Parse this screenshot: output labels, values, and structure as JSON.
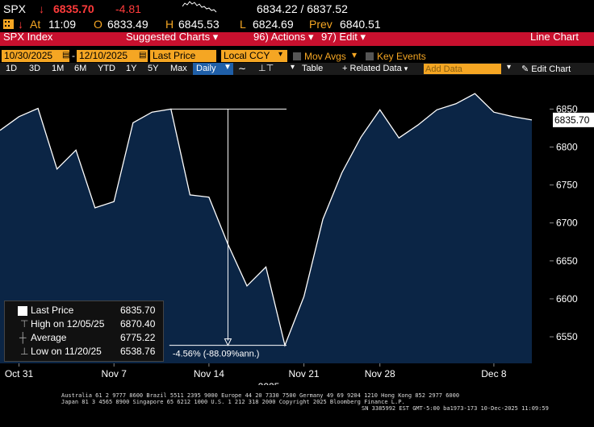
{
  "quote": {
    "ticker": "SPX",
    "arrow": "↓",
    "last": "6835.70",
    "change": "-4.81",
    "bid_ask": "6834.22 / 6837.52",
    "at_label": "At",
    "time": "11:09",
    "open_label": "O",
    "open": "6833.49",
    "high_label": "H",
    "high": "6845.53",
    "low_label": "L",
    "low": "6824.69",
    "prev_label": "Prev",
    "prev": "6840.51"
  },
  "menubar": {
    "security": "SPX Index",
    "suggested": "Suggested Charts",
    "actions": "Actions",
    "edit": "Edit",
    "chart_type": "Line Chart"
  },
  "controls": {
    "start_date": "10/30/2025",
    "dash": "-",
    "end_date": "12/10/2025",
    "field": "Last Price",
    "currency": "Local CCY",
    "mov_avgs": "Mov Avgs",
    "key_events": "Key Events"
  },
  "periods": [
    "1D",
    "3D",
    "1M",
    "6M",
    "YTD",
    "1Y",
    "5Y",
    "Max"
  ],
  "toolbar": {
    "frequency": "Daily",
    "table": "Table",
    "related": "Related Data",
    "add_data_placeholder": "Add Data",
    "edit_chart": "Edit Chart"
  },
  "chart_data": {
    "type": "area",
    "x": [
      "10/30/2025",
      "10/31/2025",
      "11/03/2025",
      "11/04/2025",
      "11/05/2025",
      "11/06/2025",
      "11/07/2025",
      "11/10/2025",
      "11/11/2025",
      "11/12/2025",
      "11/13/2025",
      "11/14/2025",
      "11/17/2025",
      "11/18/2025",
      "11/19/2025",
      "11/20/2025",
      "11/21/2025",
      "11/24/2025",
      "11/25/2025",
      "11/26/2025",
      "11/28/2025",
      "12/01/2025",
      "12/02/2025",
      "12/03/2025",
      "12/04/2025",
      "12/05/2025",
      "12/08/2025",
      "12/09/2025",
      "12/10/2025"
    ],
    "values": [
      6822,
      6840,
      6851,
      6771,
      6796,
      6720,
      6728,
      6832,
      6846,
      6850,
      6737,
      6734,
      6672,
      6617,
      6642,
      6538.76,
      6603,
      6705,
      6766,
      6813,
      6849,
      6812,
      6829,
      6849,
      6857,
      6870.4,
      6846,
      6840,
      6835.7
    ],
    "ylim": [
      6515,
      6895
    ],
    "yticks": [
      6550,
      6600,
      6650,
      6700,
      6750,
      6800,
      6850
    ],
    "xtick_labels": [
      {
        "date": "10/31/2025",
        "label": "Oct 31"
      },
      {
        "date": "11/07/2025",
        "label": "Nov 7"
      },
      {
        "date": "11/14/2025",
        "label": "Nov 14"
      },
      {
        "date": "11/21/2025",
        "label": "Nov 21"
      },
      {
        "date": "11/28/2025",
        "label": "Nov 28"
      },
      {
        "date": "12/08/2025",
        "label": "Dec 8"
      }
    ],
    "year_label": "2025",
    "last_value_label": "6835.70",
    "annotation": "-4.56% (-88.09%ann.)",
    "line_color": "#ffffff",
    "fill_color": "#0b2545"
  },
  "legend": {
    "last_price_label": "Last Price",
    "last_price_value": "6835.70",
    "high_label": "High on 12/05/25",
    "high_value": "6870.40",
    "average_label": "Average",
    "average_value": "6775.22",
    "low_label": "Low on 11/20/25",
    "low_value": "6538.76"
  },
  "footer": {
    "line1": "Australia 61 2 9777 8600 Brazil 5511 2395 9000 Europe 44 20 7330 7500 Germany 49 69 9204 1210 Hong Kong 852 2977 6000",
    "line2": "Japan 81 3 4565 8900        Singapore 65 6212 1000       U.S. 1 212 318 2000          Copyright 2025 Bloomberg Finance L.P.",
    "line3": "SN 3385992 EST  GMT-5:00 ba1973-173 10-Dec-2025 11:09:59"
  },
  "colors": {
    "amber": "#f5a623",
    "menubar_red": "#c8102e",
    "down_red": "#ff3b3b",
    "daily_blue": "#1f5fa8"
  }
}
